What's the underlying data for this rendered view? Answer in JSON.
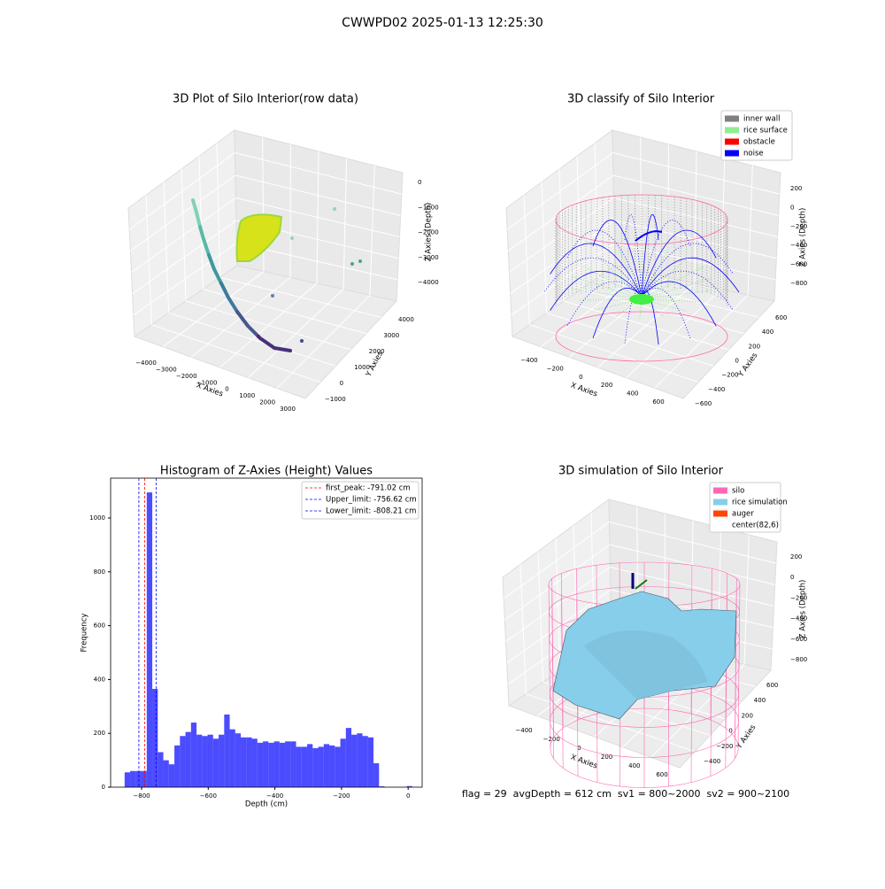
{
  "title": "CWWPD02 2025-01-13 12:25:30",
  "footer": "flag = 29  avgDepth = 612 cm  sv1 = 800~2000  sv2 = 900~2100",
  "chart_data": [
    {
      "type": "scatter3d",
      "title": "3D Plot of Silo Interior(row data)",
      "xlabel": "X Axies",
      "ylabel": "Y Axies",
      "zlabel": "Z Axies (Depth)",
      "xticks": [
        {
          "value": -4000,
          "label": "−4000"
        },
        {
          "value": -3000,
          "label": "−3000"
        },
        {
          "value": -2000,
          "label": "−2000"
        },
        {
          "value": -1000,
          "label": "−1000"
        },
        0,
        1000,
        2000,
        3000
      ],
      "yticks": [
        {
          "value": -1000,
          "label": "−1000"
        },
        0,
        1000,
        2000,
        3000,
        4000
      ],
      "zticks": [
        0,
        {
          "value": -1000,
          "label": "−1000"
        },
        {
          "value": -2000,
          "label": "−2000"
        },
        {
          "value": -3000,
          "label": "−3000"
        },
        {
          "value": -4000,
          "label": "−4000"
        }
      ]
    },
    {
      "type": "classify3d",
      "title": "3D classify of Silo Interior",
      "xlabel": "X Axies",
      "ylabel": "Y Axies",
      "zlabel": "Z Axies (Depth)",
      "xticks": [
        {
          "value": -400,
          "label": "−400"
        },
        {
          "value": -200,
          "label": "−200"
        },
        0,
        200,
        400,
        600
      ],
      "yticks": [
        {
          "value": -600,
          "label": "−600"
        },
        {
          "value": -400,
          "label": "−400"
        },
        {
          "value": -200,
          "label": "−200"
        },
        0,
        200,
        400,
        600
      ],
      "zticks": [
        200,
        0,
        {
          "value": -200,
          "label": "−200"
        },
        {
          "value": -400,
          "label": "−400"
        },
        {
          "value": -600,
          "label": "−600"
        },
        {
          "value": -800,
          "label": "−800"
        }
      ],
      "series": [
        {
          "name": "inner wall",
          "color": "gray"
        },
        {
          "name": "rice surface",
          "color": "lightgreen"
        },
        {
          "name": "obstacle",
          "color": "red"
        },
        {
          "name": "noise",
          "color": "blue"
        }
      ]
    },
    {
      "type": "histogram",
      "title": "Histogram of Z-Axies (Height) Values",
      "xlabel": "Depth (cm)",
      "ylabel": "Frequency",
      "color": "#0000ff",
      "bins": [
        -851.0,
        -834.4,
        -817.8,
        -801.2,
        -784.6,
        -768.0,
        -751.4,
        -734.8,
        -718.2,
        -701.6,
        -685.0,
        -668.4,
        -651.8,
        -635.2,
        -618.6,
        -602.0,
        -585.4,
        -568.8,
        -552.2,
        -535.6,
        -519.0,
        -502.4,
        -485.8,
        -469.2,
        -452.6,
        -436.0,
        -419.4,
        -402.8,
        -386.2,
        -369.6,
        -353.0,
        -336.4,
        -319.8,
        -303.2,
        -286.6,
        -270.0,
        -253.4,
        -236.8,
        -220.2,
        -203.6,
        -187.0,
        -170.4,
        -153.8,
        -137.2,
        -120.6,
        -104.0,
        -87.4,
        -70.8,
        -54.2,
        -37.6,
        -21.0,
        -4.4,
        12.2
      ],
      "values": [
        55,
        60,
        60,
        60,
        1095,
        365,
        130,
        100,
        85,
        155,
        190,
        205,
        240,
        195,
        190,
        195,
        180,
        195,
        270,
        215,
        200,
        185,
        185,
        180,
        165,
        170,
        165,
        170,
        165,
        170,
        170,
        150,
        150,
        160,
        145,
        150,
        160,
        155,
        150,
        180,
        220,
        195,
        200,
        190,
        185,
        89,
        3,
        0,
        0,
        0,
        0,
        4
      ],
      "xlim": [
        -893,
        42
      ],
      "ylim": [
        0,
        1148
      ],
      "xticks": [
        {
          "value": -800,
          "label": "−800"
        },
        {
          "value": -600,
          "label": "−600"
        },
        {
          "value": -400,
          "label": "−400"
        },
        {
          "value": -200,
          "label": "−200"
        },
        0
      ],
      "yticks": [
        0,
        200,
        400,
        600,
        800,
        1000
      ],
      "vlines": [
        {
          "name": "first_peak: -791.02 cm",
          "value": -791.02,
          "color": "red"
        },
        {
          "name": "Upper_limit: -756.62 cm",
          "value": -756.62,
          "color": "blue"
        },
        {
          "name": "Lower_limit: -808.21 cm",
          "value": -808.21,
          "color": "blue"
        }
      ]
    },
    {
      "type": "surface3d",
      "title": "3D simulation of Silo Interior",
      "xlabel": "X Axies",
      "ylabel": "Y Axies",
      "zlabel": "Z Axies (Depth)",
      "xticks": [
        {
          "value": -400,
          "label": "−400"
        },
        {
          "value": -200,
          "label": "−200"
        },
        0,
        200,
        400,
        600
      ],
      "yticks": [
        {
          "value": -400,
          "label": "−400"
        },
        {
          "value": -200,
          "label": "−200"
        },
        0,
        200,
        400,
        600
      ],
      "zticks": [
        200,
        0,
        {
          "value": -200,
          "label": "−200"
        },
        {
          "value": -400,
          "label": "−400"
        },
        {
          "value": -600,
          "label": "−600"
        },
        {
          "value": -800,
          "label": "−800"
        }
      ],
      "series": [
        {
          "name": "silo",
          "color": "hotpink"
        },
        {
          "name": "rice simulation",
          "color": "skyblue"
        },
        {
          "name": "auger",
          "color": "orangered"
        },
        {
          "name": "center(82,6)",
          "color": "white"
        }
      ]
    }
  ]
}
